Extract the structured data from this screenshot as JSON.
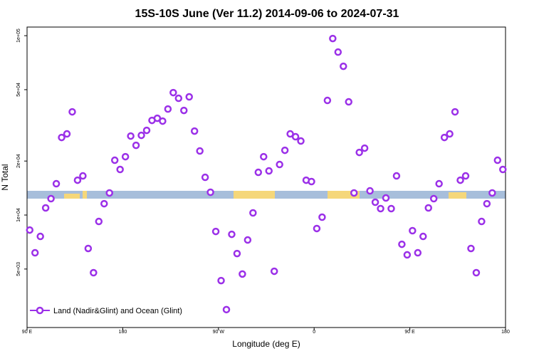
{
  "chart_data": {
    "type": "scatter",
    "title": "15S-10S June (Ver 11.2)   2014-09-06 to 2024-07-31",
    "x_label": "Longitude (deg E)",
    "y_label": "N Total",
    "log_y": true,
    "legend": "bottom-left",
    "xlim": [
      90,
      540
    ],
    "xticks": [
      {
        "value": 90,
        "label": "90 E"
      },
      180,
      {
        "value": 270,
        "label": "90 W"
      },
      {
        "value": 360,
        "label": "0"
      },
      {
        "value": 450,
        "label": "90 E"
      },
      {
        "value": 540,
        "label": "180"
      }
    ],
    "ylim": [
      2360,
      111700
    ],
    "yticks": [
      {
        "value": 5000,
        "label": "5e+03"
      },
      {
        "value": 10000,
        "label": "1e+04"
      },
      {
        "value": 20000,
        "label": "2e+04"
      },
      {
        "value": 50000,
        "label": "5e+04"
      },
      {
        "value": 100000,
        "label": "1e+05"
      }
    ],
    "series": [
      {
        "name": "Land (Nadir&Glint) and Ocean (Glint)",
        "color": "#9b30e8",
        "x": [
          92.5,
          97.5,
          102.5,
          107.5,
          112.5,
          117.5,
          122.5,
          127.5,
          132.5,
          137.5,
          142.5,
          147.5,
          152.5,
          157.5,
          162.5,
          167.5,
          172.5,
          177.5,
          182.5,
          187.5,
          192.5,
          197.5,
          202.5,
          207.5,
          212.5,
          217.5,
          222.5,
          227.5,
          232.5,
          237.5,
          242.5,
          247.5,
          252.5,
          257.5,
          262.5,
          267.5,
          272.5,
          277.5,
          282.5,
          287.5,
          292.5,
          297.5,
          302.5,
          307.5,
          312.5,
          317.5,
          322.5,
          327.5,
          332.5,
          337.5,
          342.5,
          347.5,
          352.5,
          357.5,
          362.5,
          367.5,
          372.5,
          377.5,
          382.5,
          387.5,
          392.5,
          397.5,
          402.5,
          407.5,
          412.5,
          417.5,
          422.5,
          427.5,
          432.5,
          437.5,
          442.5,
          447.5,
          452.5,
          457.5,
          462.5,
          467.5,
          472.5,
          477.5,
          482.5,
          487.5,
          492.5,
          497.5,
          502.5,
          507.5,
          512.5,
          517.5,
          522.5,
          527.5,
          532.5,
          537.5
        ],
        "values": [
          8250,
          6160,
          7600,
          10960,
          12340,
          14950,
          27070,
          28340,
          37610,
          15640,
          16530,
          6510,
          4770,
          9210,
          11570,
          13280,
          20210,
          17950,
          21150,
          27570,
          24470,
          27820,
          29660,
          33710,
          34650,
          33400,
          39000,
          48140,
          44770,
          38300,
          45600,
          29380,
          22760,
          16230,
          13400,
          8100,
          4310,
          2970,
          7810,
          6100,
          4690,
          7260,
          10280,
          17300,
          21150,
          17620,
          4860,
          19130,
          22960,
          28340,
          27330,
          25870,
          15640,
          15370,
          8410,
          9730,
          43550,
          96400,
          81000,
          67500,
          42760,
          13280,
          22340,
          23600,
          13640,
          11790,
          10860,
          12450,
          10860,
          16530,
          6870,
          6000,
          8180,
          6160,
          7600,
          10960,
          12340,
          14950,
          27070,
          28340,
          37610,
          15640,
          16530,
          6510,
          4770,
          9210,
          11570,
          13280,
          20210,
          17950
        ]
      }
    ]
  }
}
